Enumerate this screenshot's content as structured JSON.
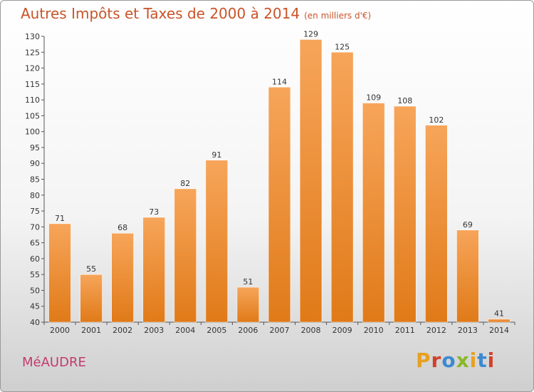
{
  "header": {
    "title": "Autres Impôts et Taxes de 2000 à 2014",
    "subtitle": "(en milliers d'€)"
  },
  "footer": {
    "place_name": "MéAUDRE",
    "logo_text": "Proxiti",
    "logo_colors": [
      "#e8a020",
      "#d0402a",
      "#3c8ad0",
      "#8ab828",
      "#e8a020",
      "#3c8ad0",
      "#d0402a"
    ]
  },
  "chart_data": {
    "type": "bar",
    "title": "Autres Impôts et Taxes de 2000 à 2014",
    "xlabel": "",
    "ylabel": "",
    "categories": [
      "2000",
      "2001",
      "2002",
      "2003",
      "2004",
      "2005",
      "2006",
      "2007",
      "2008",
      "2009",
      "2010",
      "2011",
      "2012",
      "2013",
      "2014"
    ],
    "values": [
      71,
      55,
      68,
      73,
      82,
      91,
      51,
      114,
      129,
      125,
      109,
      108,
      102,
      69,
      41
    ],
    "ylim": [
      40,
      130
    ],
    "ytick_step": 5,
    "grid": false,
    "bar_color": "#f08a2a"
  }
}
